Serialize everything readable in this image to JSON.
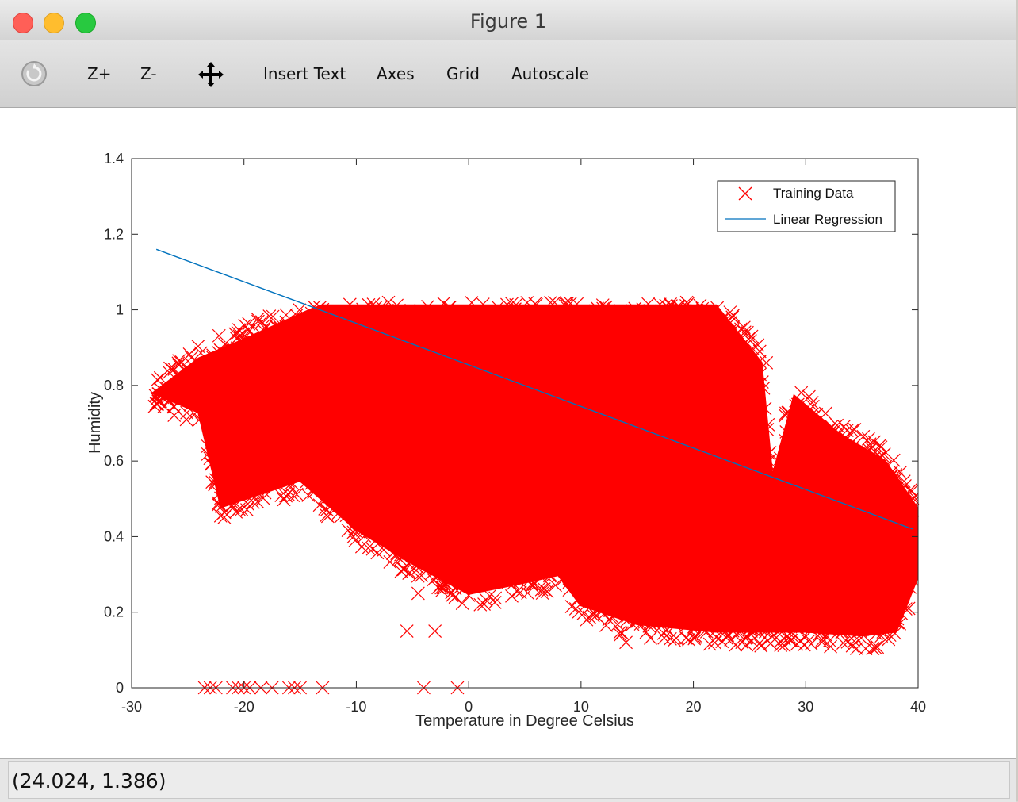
{
  "window": {
    "title": "Figure 1"
  },
  "toolbar": {
    "zoom_in": "Z+",
    "zoom_out": "Z-",
    "insert_text": "Insert Text",
    "axes": "Axes",
    "grid": "Grid",
    "autoscale": "Autoscale",
    "icons": [
      "rotate-icon",
      "pan-icon"
    ]
  },
  "status": {
    "coordinates": "(24.024, 1.386)"
  },
  "chart_data": {
    "type": "scatter",
    "title": "",
    "xlabel": "Temperature in Degree Celsius",
    "ylabel": "Humidity",
    "xlim": [
      -30,
      40
    ],
    "ylim": [
      0,
      1.4
    ],
    "xticks": [
      "-30",
      "-20",
      "-10",
      "0",
      "10",
      "20",
      "30",
      "40"
    ],
    "yticks": [
      "0",
      "0.2",
      "0.4",
      "0.6",
      "0.8",
      "1",
      "1.2",
      "1.4"
    ],
    "grid": false,
    "legend_position": "top-right",
    "series": [
      {
        "name": "Training Data",
        "type": "scatter",
        "marker": "x",
        "color": "#ff0000",
        "region": {
          "x_range": [
            -28,
            40
          ],
          "upper_bound": [
            [
              -28,
              0.78
            ],
            [
              -24,
              0.87
            ],
            [
              -20,
              0.92
            ],
            [
              -17,
              0.96
            ],
            [
              -14,
              1.0
            ],
            [
              -13,
              1.01
            ],
            [
              22,
              1.01
            ],
            [
              26,
              0.86
            ],
            [
              27,
              0.55
            ],
            [
              29,
              0.77
            ],
            [
              33,
              0.67
            ],
            [
              37,
              0.6
            ],
            [
              40,
              0.47
            ]
          ],
          "lower_bound": [
            [
              -28,
              0.78
            ],
            [
              -24,
              0.73
            ],
            [
              -22,
              0.48
            ],
            [
              -15,
              0.55
            ],
            [
              -10,
              0.42
            ],
            [
              -5,
              0.33
            ],
            [
              0,
              0.25
            ],
            [
              5,
              0.28
            ],
            [
              8,
              0.3
            ],
            [
              10,
              0.22
            ],
            [
              15,
              0.17
            ],
            [
              22,
              0.15
            ],
            [
              30,
              0.15
            ],
            [
              35,
              0.14
            ],
            [
              38,
              0.15
            ],
            [
              40,
              0.3
            ]
          ]
        },
        "outliers": [
          {
            "x": -5.5,
            "y": 0.15
          },
          {
            "x": -3.0,
            "y": 0.15
          },
          {
            "x": -4.5,
            "y": 0.25
          },
          {
            "x": -1.2,
            "y": 0.24
          },
          {
            "x": -22,
            "y": 0.48
          },
          {
            "x": -22.5,
            "y": 0.55
          },
          {
            "x": -20,
            "y": 0.58
          },
          {
            "x": 10.5,
            "y": 0.18
          },
          {
            "x": 13.5,
            "y": 0.14
          },
          {
            "x": 14,
            "y": 0.12
          },
          {
            "x": 21,
            "y": 0.15
          },
          {
            "x": 26.5,
            "y": 0.86
          },
          {
            "x": 39.5,
            "y": 0.47
          }
        ],
        "zero_humidity_points": [
          {
            "x": -23.5,
            "y": 0
          },
          {
            "x": -23,
            "y": 0
          },
          {
            "x": -22.5,
            "y": 0
          },
          {
            "x": -21,
            "y": 0
          },
          {
            "x": -20.5,
            "y": 0
          },
          {
            "x": -20,
            "y": 0
          },
          {
            "x": -19.5,
            "y": 0
          },
          {
            "x": -18.5,
            "y": 0
          },
          {
            "x": -17.5,
            "y": 0
          },
          {
            "x": -16,
            "y": 0
          },
          {
            "x": -15.5,
            "y": 0
          },
          {
            "x": -15,
            "y": 0
          },
          {
            "x": -13,
            "y": 0
          },
          {
            "x": -4,
            "y": 0
          },
          {
            "x": -1,
            "y": 0
          }
        ]
      },
      {
        "name": "Linear Regression",
        "type": "line",
        "color": "#0072bd",
        "points": [
          [
            -27.8,
            1.16
          ],
          [
            39.5,
            0.42
          ]
        ]
      }
    ]
  }
}
